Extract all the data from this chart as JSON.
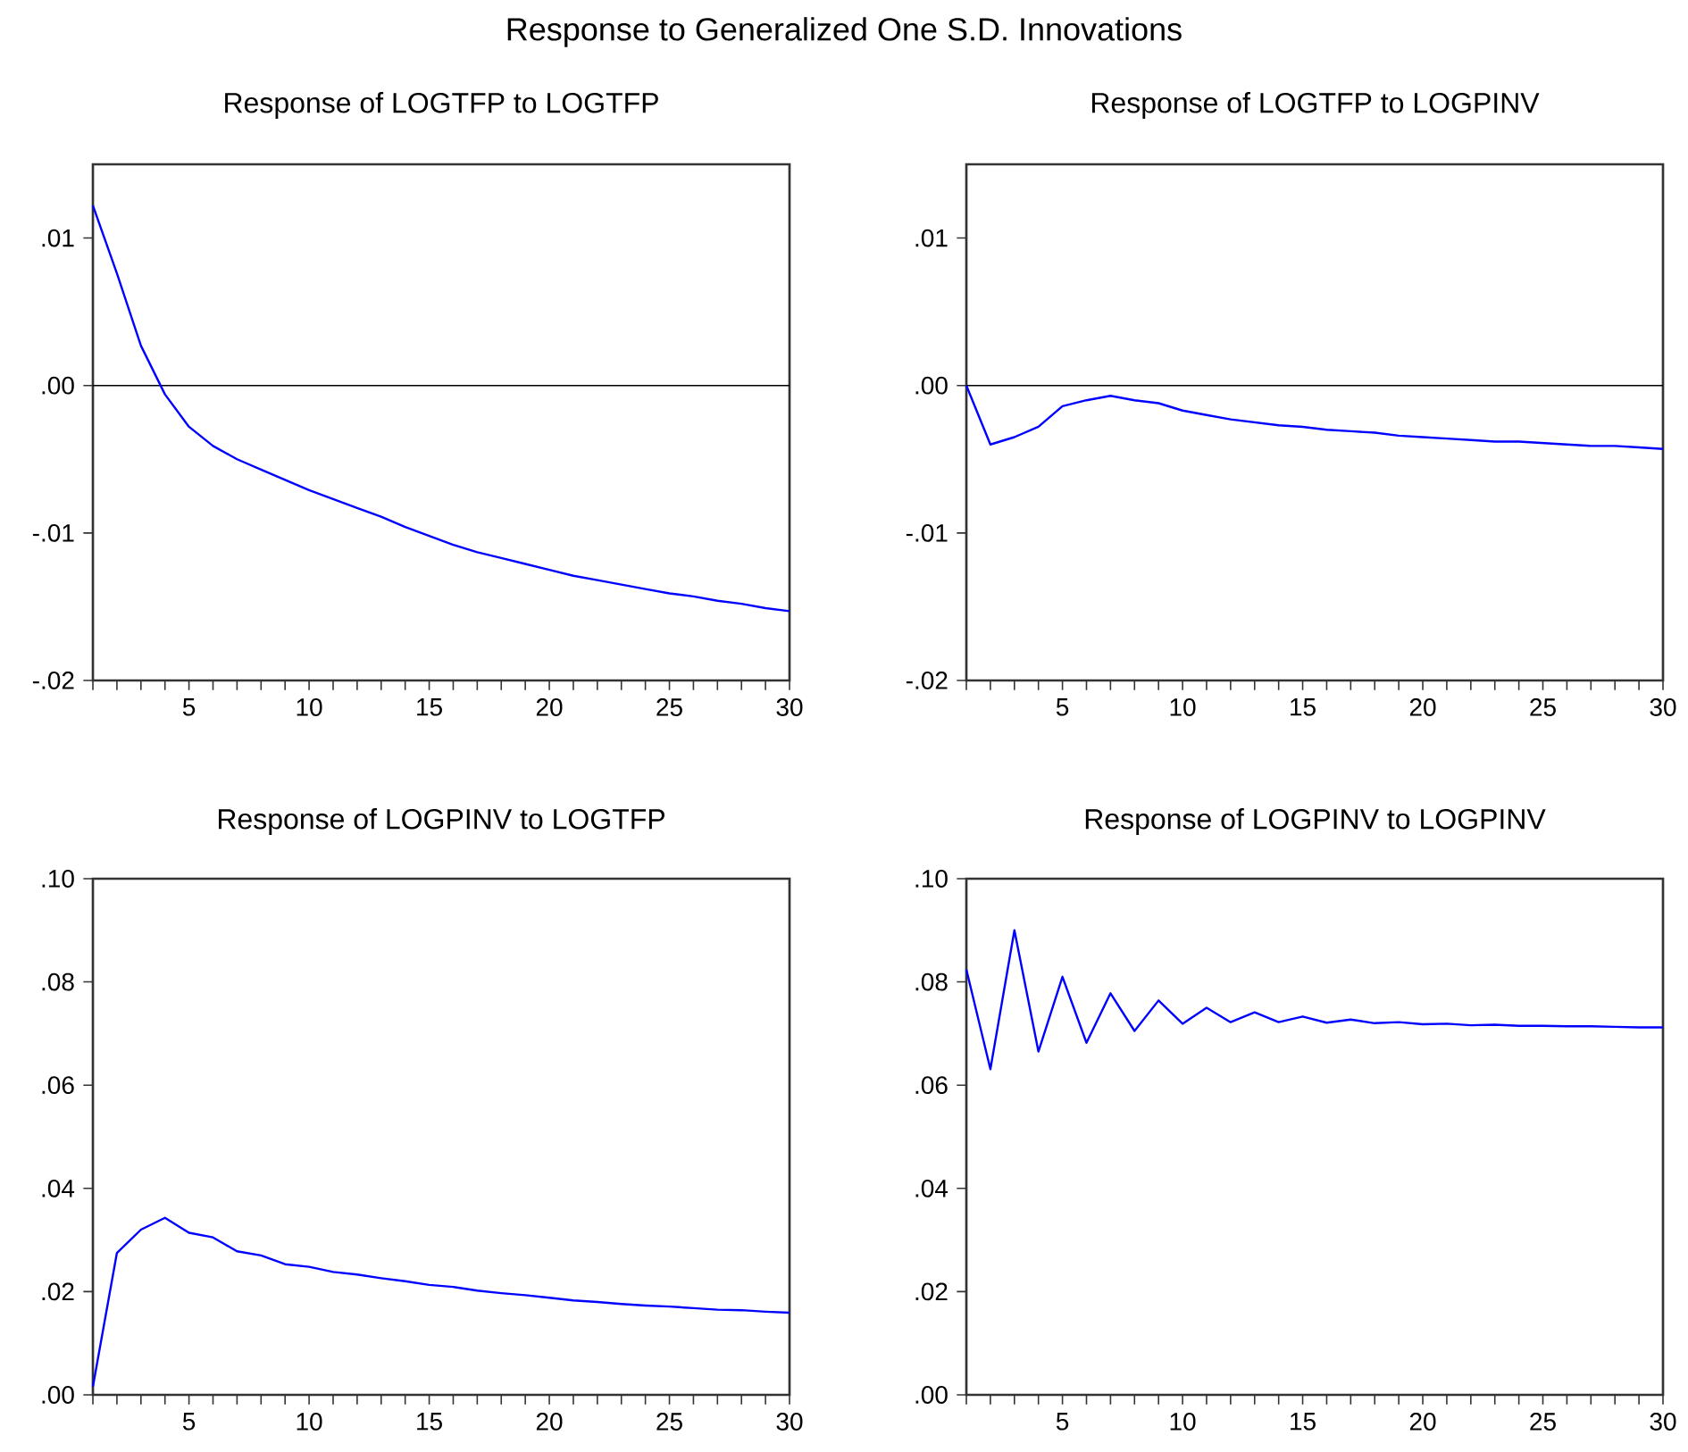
{
  "chart_data": [
    {
      "type": "line",
      "title": "Response of LOGTFP to LOGTFP",
      "annotations": [
        "Response to Generalized One S.D. Innovations"
      ],
      "x": [
        1,
        2,
        3,
        4,
        5,
        6,
        7,
        8,
        9,
        10,
        11,
        12,
        13,
        14,
        15,
        16,
        17,
        18,
        19,
        20,
        21,
        22,
        23,
        24,
        25,
        26,
        27,
        28,
        29,
        30
      ],
      "series": [
        {
          "color": "#0000ff",
          "values": [
            0.0122,
            0.0076,
            0.0027,
            -0.0006,
            -0.0028,
            -0.0041,
            -0.005,
            -0.0057,
            -0.0064,
            -0.0071,
            -0.0077,
            -0.0083,
            -0.0089,
            -0.0096,
            -0.0102,
            -0.0108,
            -0.0113,
            -0.0117,
            -0.0121,
            -0.0125,
            -0.0129,
            -0.0132,
            -0.0135,
            -0.0138,
            -0.0141,
            -0.0143,
            -0.0146,
            -0.0148,
            -0.0151,
            -0.0153
          ]
        }
      ],
      "xlim": [
        1,
        30
      ],
      "ylim": [
        -0.02,
        0.015
      ],
      "xticks": [
        {
          "value": 1,
          "label": null
        },
        {
          "value": 2,
          "label": null
        },
        {
          "value": 3,
          "label": null
        },
        {
          "value": 4,
          "label": null
        },
        5,
        {
          "value": 6,
          "label": null
        },
        {
          "value": 7,
          "label": null
        },
        {
          "value": 8,
          "label": null
        },
        {
          "value": 9,
          "label": null
        },
        10,
        {
          "value": 11,
          "label": null
        },
        {
          "value": 12,
          "label": null
        },
        {
          "value": 13,
          "label": null
        },
        {
          "value": 14,
          "label": null
        },
        15,
        {
          "value": 16,
          "label": null
        },
        {
          "value": 17,
          "label": null
        },
        {
          "value": 18,
          "label": null
        },
        {
          "value": 19,
          "label": null
        },
        20,
        {
          "value": 21,
          "label": null
        },
        {
          "value": 22,
          "label": null
        },
        {
          "value": 23,
          "label": null
        },
        {
          "value": 24,
          "label": null
        },
        25,
        {
          "value": 26,
          "label": null
        },
        {
          "value": 27,
          "label": null
        },
        {
          "value": 28,
          "label": null
        },
        {
          "value": 29,
          "label": null
        },
        30
      ],
      "yticks": [
        {
          "value": -0.02,
          "label": "-.02"
        },
        {
          "value": -0.01,
          "label": "-.01"
        },
        {
          "value": 0,
          "label": ".00"
        },
        {
          "value": 0.01,
          "label": ".01"
        }
      ],
      "ref_lines": [
        {
          "axis": "y",
          "value": 0,
          "color": "#000000"
        }
      ]
    },
    {
      "type": "line",
      "title": "Response of LOGTFP to LOGPINV",
      "x": [
        1,
        2,
        3,
        4,
        5,
        6,
        7,
        8,
        9,
        10,
        11,
        12,
        13,
        14,
        15,
        16,
        17,
        18,
        19,
        20,
        21,
        22,
        23,
        24,
        25,
        26,
        27,
        28,
        29,
        30
      ],
      "series": [
        {
          "color": "#0000ff",
          "values": [
            0.0,
            -0.004,
            -0.0035,
            -0.0028,
            -0.0014,
            -0.001,
            -0.0007,
            -0.001,
            -0.0012,
            -0.0017,
            -0.002,
            -0.0023,
            -0.0025,
            -0.0027,
            -0.0028,
            -0.003,
            -0.0031,
            -0.0032,
            -0.0034,
            -0.0035,
            -0.0036,
            -0.0037,
            -0.0038,
            -0.0038,
            -0.0039,
            -0.004,
            -0.0041,
            -0.0041,
            -0.0042,
            -0.0043
          ]
        }
      ],
      "xlim": [
        1,
        30
      ],
      "ylim": [
        -0.02,
        0.015
      ],
      "xticks": [
        {
          "value": 1,
          "label": null
        },
        {
          "value": 2,
          "label": null
        },
        {
          "value": 3,
          "label": null
        },
        {
          "value": 4,
          "label": null
        },
        5,
        {
          "value": 6,
          "label": null
        },
        {
          "value": 7,
          "label": null
        },
        {
          "value": 8,
          "label": null
        },
        {
          "value": 9,
          "label": null
        },
        10,
        {
          "value": 11,
          "label": null
        },
        {
          "value": 12,
          "label": null
        },
        {
          "value": 13,
          "label": null
        },
        {
          "value": 14,
          "label": null
        },
        15,
        {
          "value": 16,
          "label": null
        },
        {
          "value": 17,
          "label": null
        },
        {
          "value": 18,
          "label": null
        },
        {
          "value": 19,
          "label": null
        },
        20,
        {
          "value": 21,
          "label": null
        },
        {
          "value": 22,
          "label": null
        },
        {
          "value": 23,
          "label": null
        },
        {
          "value": 24,
          "label": null
        },
        25,
        {
          "value": 26,
          "label": null
        },
        {
          "value": 27,
          "label": null
        },
        {
          "value": 28,
          "label": null
        },
        {
          "value": 29,
          "label": null
        },
        30
      ],
      "yticks": [
        {
          "value": -0.02,
          "label": "-.02"
        },
        {
          "value": -0.01,
          "label": "-.01"
        },
        {
          "value": 0,
          "label": ".00"
        },
        {
          "value": 0.01,
          "label": ".01"
        }
      ],
      "ref_lines": [
        {
          "axis": "y",
          "value": 0,
          "color": "#000000"
        }
      ]
    },
    {
      "type": "line",
      "title": "Response of LOGPINV to LOGTFP",
      "x": [
        1,
        2,
        3,
        4,
        5,
        6,
        7,
        8,
        9,
        10,
        11,
        12,
        13,
        14,
        15,
        16,
        17,
        18,
        19,
        20,
        21,
        22,
        23,
        24,
        25,
        26,
        27,
        28,
        29,
        30
      ],
      "series": [
        {
          "color": "#0000ff",
          "values": [
            0.0016,
            0.0275,
            0.032,
            0.0343,
            0.0314,
            0.0305,
            0.0278,
            0.027,
            0.0253,
            0.0248,
            0.0238,
            0.0233,
            0.0226,
            0.022,
            0.0213,
            0.0209,
            0.0202,
            0.0197,
            0.0193,
            0.0188,
            0.0183,
            0.018,
            0.0176,
            0.0173,
            0.0171,
            0.0168,
            0.0165,
            0.0164,
            0.0161,
            0.0159
          ]
        }
      ],
      "xlim": [
        1,
        30
      ],
      "ylim": [
        0,
        0.1
      ],
      "xticks": [
        {
          "value": 1,
          "label": null
        },
        {
          "value": 2,
          "label": null
        },
        {
          "value": 3,
          "label": null
        },
        {
          "value": 4,
          "label": null
        },
        5,
        {
          "value": 6,
          "label": null
        },
        {
          "value": 7,
          "label": null
        },
        {
          "value": 8,
          "label": null
        },
        {
          "value": 9,
          "label": null
        },
        10,
        {
          "value": 11,
          "label": null
        },
        {
          "value": 12,
          "label": null
        },
        {
          "value": 13,
          "label": null
        },
        {
          "value": 14,
          "label": null
        },
        15,
        {
          "value": 16,
          "label": null
        },
        {
          "value": 17,
          "label": null
        },
        {
          "value": 18,
          "label": null
        },
        {
          "value": 19,
          "label": null
        },
        20,
        {
          "value": 21,
          "label": null
        },
        {
          "value": 22,
          "label": null
        },
        {
          "value": 23,
          "label": null
        },
        {
          "value": 24,
          "label": null
        },
        25,
        {
          "value": 26,
          "label": null
        },
        {
          "value": 27,
          "label": null
        },
        {
          "value": 28,
          "label": null
        },
        {
          "value": 29,
          "label": null
        },
        30
      ],
      "yticks": [
        {
          "value": 0,
          "label": ".00"
        },
        {
          "value": 0.02,
          "label": ".02"
        },
        {
          "value": 0.04,
          "label": ".04"
        },
        {
          "value": 0.06,
          "label": ".06"
        },
        {
          "value": 0.08,
          "label": ".08"
        },
        {
          "value": 0.1,
          "label": ".10"
        }
      ]
    },
    {
      "type": "line",
      "title": "Response of LOGPINV to LOGPINV",
      "x": [
        1,
        2,
        3,
        4,
        5,
        6,
        7,
        8,
        9,
        10,
        11,
        12,
        13,
        14,
        15,
        16,
        17,
        18,
        19,
        20,
        21,
        22,
        23,
        24,
        25,
        26,
        27,
        28,
        29,
        30
      ],
      "series": [
        {
          "color": "#0000ff",
          "values": [
            0.0824,
            0.0631,
            0.09,
            0.0665,
            0.081,
            0.0682,
            0.0778,
            0.0705,
            0.0764,
            0.0719,
            0.075,
            0.0722,
            0.0741,
            0.0722,
            0.0733,
            0.0721,
            0.0727,
            0.072,
            0.0722,
            0.0718,
            0.0719,
            0.0716,
            0.0717,
            0.0715,
            0.0715,
            0.0714,
            0.0714,
            0.0713,
            0.0712,
            0.0712
          ]
        }
      ],
      "xlim": [
        1,
        30
      ],
      "ylim": [
        0,
        0.1
      ],
      "xticks": [
        {
          "value": 1,
          "label": null
        },
        {
          "value": 2,
          "label": null
        },
        {
          "value": 3,
          "label": null
        },
        {
          "value": 4,
          "label": null
        },
        5,
        {
          "value": 6,
          "label": null
        },
        {
          "value": 7,
          "label": null
        },
        {
          "value": 8,
          "label": null
        },
        {
          "value": 9,
          "label": null
        },
        10,
        {
          "value": 11,
          "label": null
        },
        {
          "value": 12,
          "label": null
        },
        {
          "value": 13,
          "label": null
        },
        {
          "value": 14,
          "label": null
        },
        15,
        {
          "value": 16,
          "label": null
        },
        {
          "value": 17,
          "label": null
        },
        {
          "value": 18,
          "label": null
        },
        {
          "value": 19,
          "label": null
        },
        20,
        {
          "value": 21,
          "label": null
        },
        {
          "value": 22,
          "label": null
        },
        {
          "value": 23,
          "label": null
        },
        {
          "value": 24,
          "label": null
        },
        25,
        {
          "value": 26,
          "label": null
        },
        {
          "value": 27,
          "label": null
        },
        {
          "value": 28,
          "label": null
        },
        {
          "value": 29,
          "label": null
        },
        30
      ],
      "yticks": [
        {
          "value": 0,
          "label": ".00"
        },
        {
          "value": 0.02,
          "label": ".02"
        },
        {
          "value": 0.04,
          "label": ".04"
        },
        {
          "value": 0.06,
          "label": ".06"
        },
        {
          "value": 0.08,
          "label": ".08"
        },
        {
          "value": 0.1,
          "label": ".10"
        }
      ]
    }
  ]
}
